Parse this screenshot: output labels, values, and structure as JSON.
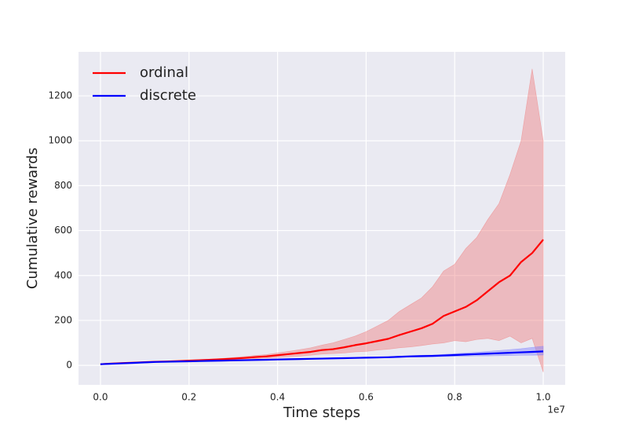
{
  "chart_data": {
    "type": "line",
    "xlabel": "Time steps",
    "ylabel": "Cumulative rewards",
    "x_offset_label": "1e7",
    "x": [
      0,
      0.025,
      0.05,
      0.075,
      0.1,
      0.125,
      0.15,
      0.175,
      0.2,
      0.225,
      0.25,
      0.275,
      0.3,
      0.325,
      0.35,
      0.375,
      0.4,
      0.425,
      0.45,
      0.475,
      0.5,
      0.525,
      0.55,
      0.575,
      0.6,
      0.625,
      0.65,
      0.675,
      0.7,
      0.725,
      0.75,
      0.775,
      0.8,
      0.825,
      0.85,
      0.875,
      0.9,
      0.925,
      0.95,
      0.975,
      1.0
    ],
    "series": [
      {
        "name": "ordinal",
        "color": "#ff0000",
        "band_color": "#f08080",
        "values": [
          5,
          8,
          10,
          12,
          14,
          16,
          17,
          19,
          21,
          23,
          25,
          27,
          30,
          33,
          37,
          40,
          45,
          50,
          55,
          60,
          68,
          72,
          80,
          90,
          98,
          108,
          118,
          135,
          150,
          165,
          185,
          220,
          240,
          260,
          290,
          330,
          370,
          400,
          460,
          500,
          560
        ],
        "band_upper": [
          6,
          9,
          11,
          13,
          15,
          17,
          19,
          21,
          23,
          26,
          28,
          31,
          35,
          39,
          44,
          48,
          55,
          62,
          70,
          78,
          90,
          100,
          115,
          130,
          150,
          175,
          200,
          240,
          270,
          300,
          350,
          420,
          450,
          520,
          570,
          650,
          720,
          850,
          1000,
          1320,
          1000
        ],
        "band_lower": [
          4,
          7,
          9,
          11,
          13,
          14,
          16,
          17,
          19,
          21,
          22,
          24,
          26,
          28,
          30,
          32,
          35,
          38,
          41,
          45,
          50,
          52,
          55,
          60,
          62,
          68,
          72,
          78,
          82,
          88,
          95,
          100,
          110,
          105,
          115,
          120,
          110,
          130,
          100,
          120,
          -30
        ]
      },
      {
        "name": "discrete",
        "color": "#0000ff",
        "band_color": "#8080ff",
        "values": [
          5,
          7,
          9,
          11,
          13,
          15,
          16,
          17,
          18,
          19,
          20,
          21,
          22,
          23,
          24,
          25,
          26,
          27,
          28,
          29,
          30,
          31,
          32,
          33,
          34,
          35,
          36,
          38,
          40,
          41,
          42,
          44,
          46,
          48,
          50,
          52,
          54,
          56,
          58,
          60,
          62
        ],
        "band_upper": [
          6,
          8,
          10,
          12,
          14,
          16,
          17,
          18,
          19,
          20,
          21,
          22,
          23,
          24,
          25,
          26,
          27,
          28,
          29,
          31,
          32,
          33,
          34,
          35,
          36,
          37,
          38,
          41,
          43,
          45,
          46,
          49,
          52,
          55,
          58,
          62,
          66,
          70,
          74,
          80,
          85
        ],
        "band_lower": [
          4,
          6,
          8,
          10,
          12,
          14,
          15,
          16,
          17,
          18,
          19,
          20,
          21,
          22,
          23,
          24,
          25,
          26,
          27,
          27,
          28,
          29,
          30,
          31,
          32,
          33,
          34,
          35,
          37,
          37,
          38,
          39,
          40,
          41,
          42,
          42,
          43,
          44,
          45,
          45,
          46
        ]
      }
    ],
    "xlim": [
      -0.0496,
      1.0496
    ],
    "xticks": [
      {
        "value": 0,
        "label": "0.0"
      },
      {
        "value": 0.2,
        "label": "0.2"
      },
      {
        "value": 0.4,
        "label": "0.4"
      },
      {
        "value": 0.6,
        "label": "0.6"
      },
      {
        "value": 0.8,
        "label": "0.8"
      },
      {
        "value": 1.0,
        "label": "1.0"
      }
    ],
    "ylim": [
      -87,
      1396
    ],
    "yticks": [
      0,
      200,
      400,
      600,
      800,
      1000,
      1200
    ],
    "grid": true,
    "legend": "upper left"
  }
}
